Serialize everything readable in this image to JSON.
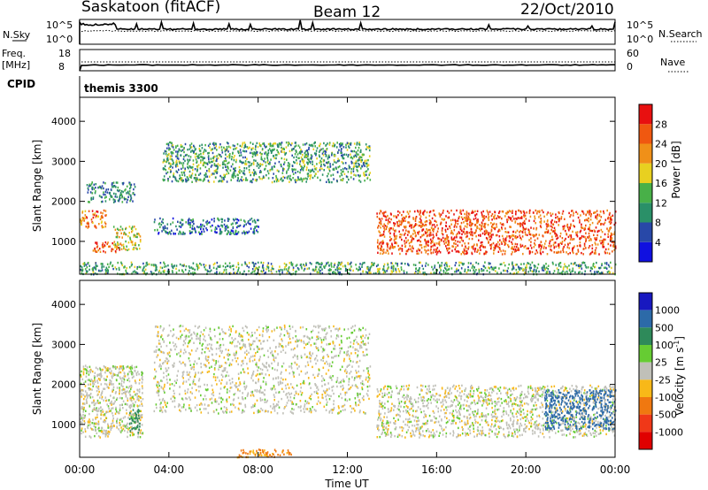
{
  "header": {
    "station": "Saskatoon (fitACF)",
    "beam": "Beam 12",
    "date": "22/Oct/2010"
  },
  "sky_panel": {
    "left_label": "N.Sky",
    "right_label": "N.Search",
    "left_ticks": [
      "10^5",
      "10^0"
    ],
    "right_ticks": [
      "10^5",
      "10^0"
    ]
  },
  "freq_panel": {
    "left_label_line1": "Freq.",
    "left_label_line2": "[MHz]",
    "left_ticks": [
      "18",
      "8"
    ],
    "right_label": "Nave",
    "right_ticks": [
      "60",
      "0"
    ]
  },
  "cpid": {
    "label": "CPID",
    "value": "themis 3300"
  },
  "chart_data": [
    {
      "type": "heatmap",
      "parameter": "Power",
      "ylabel": "Slant Range [km]",
      "yticks": [
        "1000",
        "2000",
        "3000",
        "4000"
      ],
      "ylim": [
        180,
        4600
      ],
      "xlim_hours": [
        0,
        24
      ],
      "colorbar_label": "Power [dB]",
      "colorbar_ticks": [
        "4",
        "8",
        "12",
        "16",
        "20",
        "24",
        "28"
      ],
      "colorbar_colors": [
        "#1010e0",
        "#2848a8",
        "#2a9068",
        "#48b048",
        "#e8d020",
        "#f09018",
        "#f05810",
        "#e81010"
      ],
      "echo_regions": [
        {
          "t": [
            0.0,
            1.2
          ],
          "r": [
            1350,
            1800
          ],
          "power": 24
        },
        {
          "t": [
            0.5,
            1.8
          ],
          "r": [
            750,
            1000
          ],
          "power": 26
        },
        {
          "t": [
            1.5,
            2.7
          ],
          "r": [
            800,
            1400
          ],
          "power": 18
        },
        {
          "t": [
            0.3,
            2.5
          ],
          "r": [
            2000,
            2500
          ],
          "power": 10
        },
        {
          "t": [
            3.3,
            8.0
          ],
          "r": [
            1200,
            1600
          ],
          "power": 8
        },
        {
          "t": [
            3.7,
            13.0
          ],
          "r": [
            2500,
            3500
          ],
          "power": 12
        },
        {
          "t": [
            13.3,
            24.0
          ],
          "r": [
            700,
            1800
          ],
          "power": 26
        },
        {
          "t": [
            0.0,
            24.0
          ],
          "r": [
            200,
            500
          ],
          "power": 12
        }
      ]
    },
    {
      "type": "heatmap",
      "parameter": "Velocity",
      "ylabel": "Slant Range [km]",
      "yticks": [
        "1000",
        "2000",
        "3000",
        "4000"
      ],
      "ylim": [
        180,
        4600
      ],
      "xlim_hours": [
        0,
        24
      ],
      "colorbar_label": "Velocity [m s^-1]",
      "colorbar_ticks": [
        "1000",
        "500",
        "100",
        "25",
        "-25",
        "-100",
        "-500",
        "-1000"
      ],
      "colorbar_colors": [
        "#1818c0",
        "#2c6aa8",
        "#2e8a5a",
        "#66cc33",
        "#c0c0b8",
        "#f8b818",
        "#f07810",
        "#f03818",
        "#e00000"
      ],
      "echo_regions": [
        {
          "t": [
            0.0,
            2.8
          ],
          "r": [
            700,
            2500
          ],
          "velocity": 0
        },
        {
          "t": [
            2.2,
            2.7
          ],
          "r": [
            800,
            1400
          ],
          "velocity": 150
        },
        {
          "t": [
            3.3,
            13.0
          ],
          "r": [
            1300,
            3500
          ],
          "velocity": 0
        },
        {
          "t": [
            13.3,
            24.0
          ],
          "r": [
            700,
            2000
          ],
          "velocity": 0
        },
        {
          "t": [
            20.8,
            24.0
          ],
          "r": [
            900,
            1900
          ],
          "velocity": 400
        },
        {
          "t": [
            7.0,
            9.5
          ],
          "r": [
            200,
            400
          ],
          "velocity": -120
        }
      ]
    }
  ],
  "time_axis": {
    "label": "Time UT",
    "ticks": [
      "00:00",
      "04:00",
      "08:00",
      "12:00",
      "16:00",
      "20:00",
      "00:00"
    ]
  }
}
